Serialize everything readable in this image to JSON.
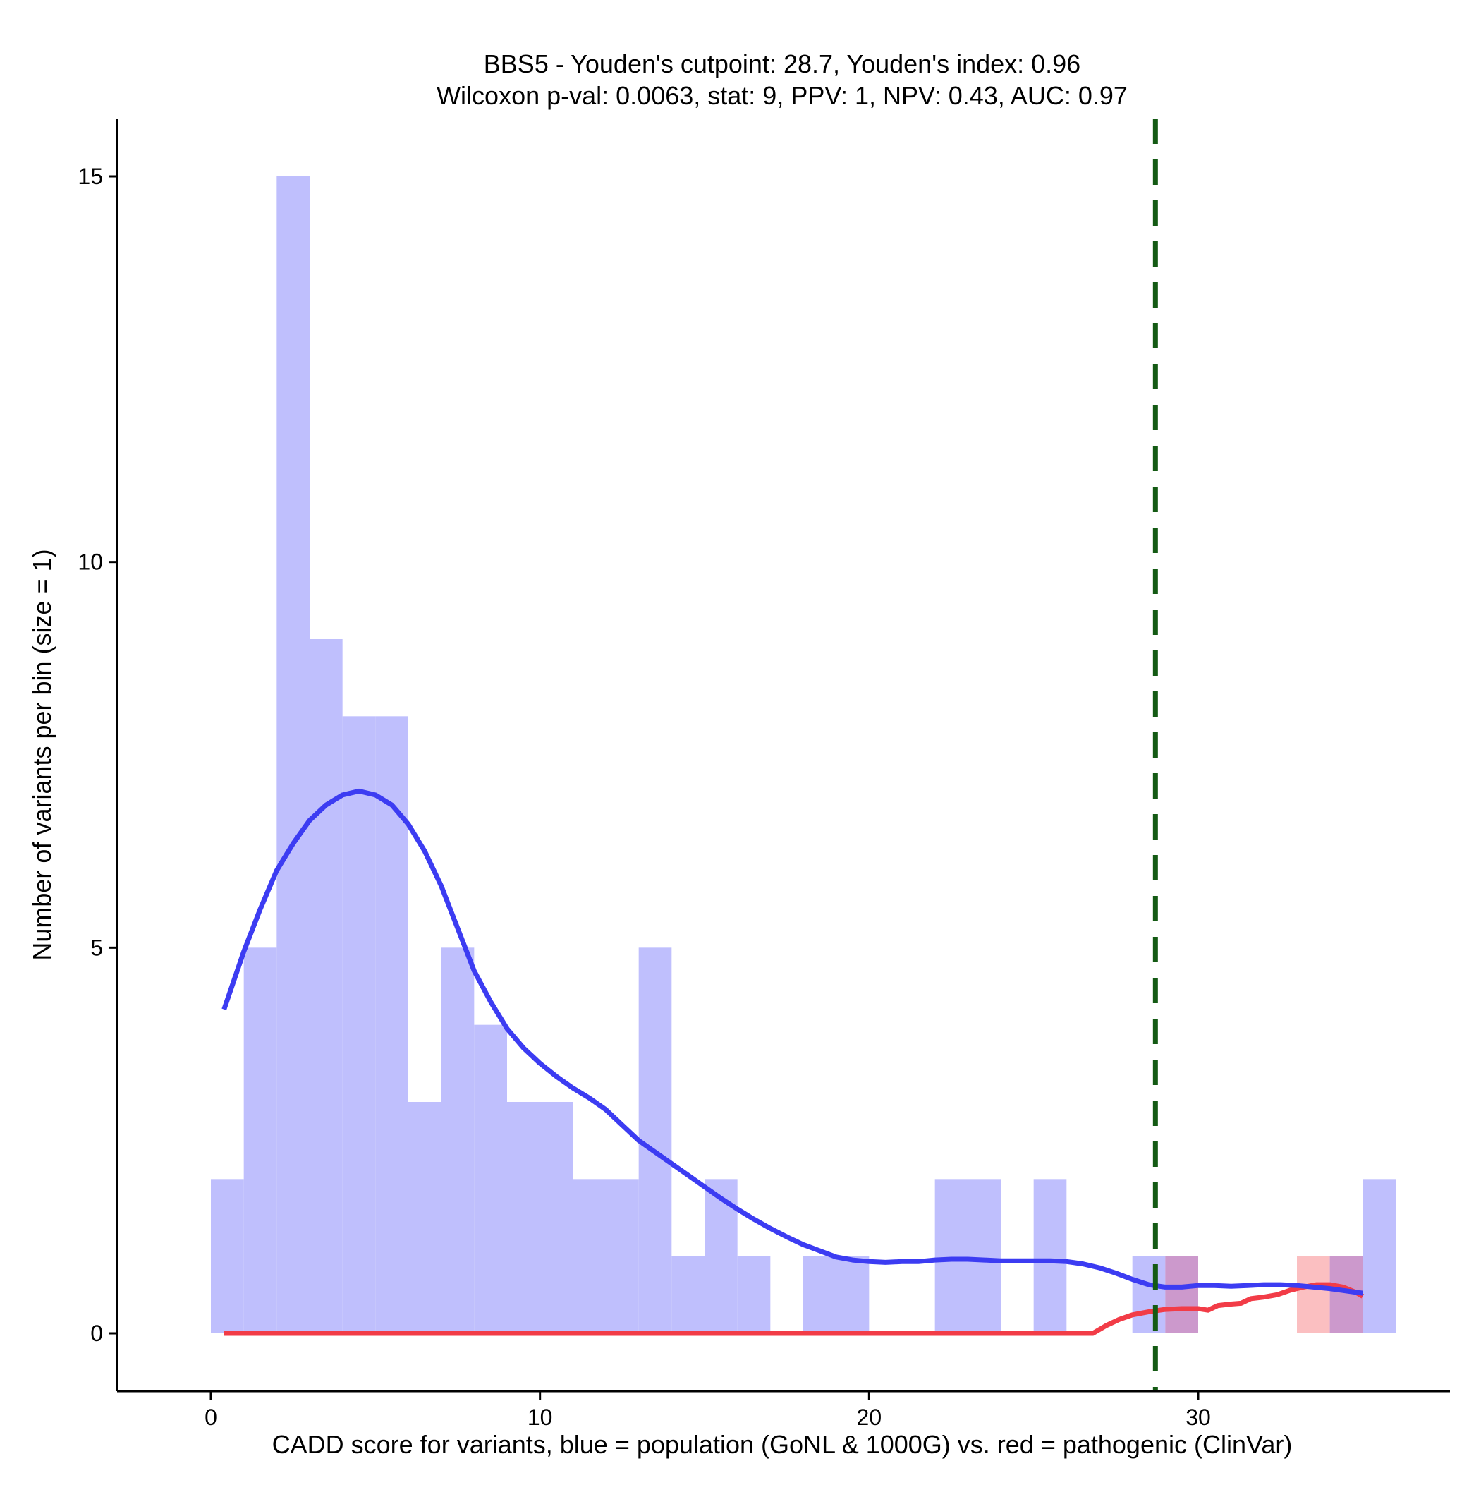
{
  "chart_data": {
    "type": "bar",
    "title_line1": "BBS5 - Youden's cutpoint: 28.7, Youden's index: 0.96",
    "title_line2": "Wilcoxon p-val: 0.0063, stat: 9, PPV: 1, NPV: 0.43, AUC: 0.97",
    "xlabel": "CADD score for variants, blue = population (GoNL & 1000G) vs. red = pathogenic (ClinVar)",
    "ylabel": "Number of variants per bin (size = 1)",
    "xlim": [
      -2.85,
      37.65
    ],
    "ylim": [
      -0.75,
      15.75
    ],
    "xticks": [
      0,
      10,
      20,
      30
    ],
    "yticks": [
      0,
      5,
      10,
      15
    ],
    "bin_width": 1,
    "grid": false,
    "colors": {
      "population_bar": "#bfbffd",
      "pathogenic_bar": "#fbbfc1",
      "overlap_bar": "#cc99cc",
      "population_line": "#3c3cf2",
      "pathogenic_line": "#f23c47",
      "cutpoint_line": "#145a14"
    },
    "series": [
      {
        "name": "population (GoNL & 1000G)",
        "bins": [
          {
            "x0": 0,
            "count": 2
          },
          {
            "x0": 1,
            "count": 5
          },
          {
            "x0": 2,
            "count": 15
          },
          {
            "x0": 3,
            "count": 9
          },
          {
            "x0": 4,
            "count": 8
          },
          {
            "x0": 5,
            "count": 8
          },
          {
            "x0": 6,
            "count": 3
          },
          {
            "x0": 7,
            "count": 5
          },
          {
            "x0": 8,
            "count": 4
          },
          {
            "x0": 9,
            "count": 3
          },
          {
            "x0": 10,
            "count": 3
          },
          {
            "x0": 11,
            "count": 2
          },
          {
            "x0": 12,
            "count": 2
          },
          {
            "x0": 13,
            "count": 5
          },
          {
            "x0": 14,
            "count": 1
          },
          {
            "x0": 15,
            "count": 2
          },
          {
            "x0": 16,
            "count": 1
          },
          {
            "x0": 18,
            "count": 1
          },
          {
            "x0": 19,
            "count": 1
          },
          {
            "x0": 22,
            "count": 2
          },
          {
            "x0": 23,
            "count": 2
          },
          {
            "x0": 25,
            "count": 2
          },
          {
            "x0": 28,
            "count": 1
          },
          {
            "x0": 29,
            "count": 1
          },
          {
            "x0": 34,
            "count": 1
          },
          {
            "x0": 35,
            "count": 2
          }
        ],
        "density_curve": [
          [
            0.4,
            4.2
          ],
          [
            1.0,
            4.95
          ],
          [
            1.5,
            5.5
          ],
          [
            2.0,
            6.0
          ],
          [
            2.5,
            6.35
          ],
          [
            3.0,
            6.65
          ],
          [
            3.5,
            6.85
          ],
          [
            4.0,
            6.98
          ],
          [
            4.5,
            7.03
          ],
          [
            5.0,
            6.98
          ],
          [
            5.5,
            6.85
          ],
          [
            6.0,
            6.6
          ],
          [
            6.5,
            6.25
          ],
          [
            7.0,
            5.8
          ],
          [
            7.5,
            5.25
          ],
          [
            8.0,
            4.7
          ],
          [
            8.5,
            4.3
          ],
          [
            9.0,
            3.95
          ],
          [
            9.5,
            3.7
          ],
          [
            10.0,
            3.5
          ],
          [
            10.5,
            3.33
          ],
          [
            11.0,
            3.18
          ],
          [
            11.5,
            3.05
          ],
          [
            12.0,
            2.9
          ],
          [
            12.5,
            2.7
          ],
          [
            13.0,
            2.5
          ],
          [
            13.5,
            2.35
          ],
          [
            14.0,
            2.2
          ],
          [
            14.5,
            2.05
          ],
          [
            15.0,
            1.9
          ],
          [
            15.5,
            1.75
          ],
          [
            16.0,
            1.61
          ],
          [
            16.5,
            1.48
          ],
          [
            17.0,
            1.36
          ],
          [
            17.5,
            1.25
          ],
          [
            18.0,
            1.15
          ],
          [
            18.5,
            1.07
          ],
          [
            19.0,
            0.99
          ],
          [
            19.5,
            0.95
          ],
          [
            20.0,
            0.93
          ],
          [
            20.5,
            0.92
          ],
          [
            21.0,
            0.93
          ],
          [
            21.5,
            0.93
          ],
          [
            22.0,
            0.95
          ],
          [
            22.5,
            0.96
          ],
          [
            23.0,
            0.96
          ],
          [
            23.5,
            0.95
          ],
          [
            24.0,
            0.94
          ],
          [
            24.5,
            0.94
          ],
          [
            25.0,
            0.94
          ],
          [
            25.5,
            0.94
          ],
          [
            26.0,
            0.93
          ],
          [
            26.5,
            0.9
          ],
          [
            27.0,
            0.85
          ],
          [
            27.5,
            0.78
          ],
          [
            28.0,
            0.7
          ],
          [
            28.5,
            0.63
          ],
          [
            29.0,
            0.6
          ],
          [
            29.5,
            0.6
          ],
          [
            30.0,
            0.62
          ],
          [
            30.5,
            0.62
          ],
          [
            31.0,
            0.61
          ],
          [
            31.5,
            0.62
          ],
          [
            32.0,
            0.63
          ],
          [
            32.5,
            0.63
          ],
          [
            33.0,
            0.62
          ],
          [
            33.5,
            0.6
          ],
          [
            34.0,
            0.58
          ],
          [
            34.5,
            0.55
          ],
          [
            35.0,
            0.52
          ]
        ]
      },
      {
        "name": "pathogenic (ClinVar)",
        "bins": [
          {
            "x0": 29,
            "count": 1
          },
          {
            "x0": 33,
            "count": 1
          },
          {
            "x0": 34,
            "count": 1
          }
        ],
        "density_curve": [
          [
            0.4,
            0.0
          ],
          [
            5.0,
            0.0
          ],
          [
            10.0,
            0.0
          ],
          [
            15.0,
            0.0
          ],
          [
            20.0,
            0.0
          ],
          [
            25.0,
            0.0
          ],
          [
            26.8,
            0.0
          ],
          [
            27.2,
            0.1
          ],
          [
            27.6,
            0.18
          ],
          [
            28.0,
            0.24
          ],
          [
            28.5,
            0.28
          ],
          [
            29.0,
            0.31
          ],
          [
            29.5,
            0.32
          ],
          [
            30.0,
            0.32
          ],
          [
            30.3,
            0.3
          ],
          [
            30.6,
            0.36
          ],
          [
            31.0,
            0.38
          ],
          [
            31.3,
            0.39
          ],
          [
            31.6,
            0.45
          ],
          [
            32.0,
            0.47
          ],
          [
            32.4,
            0.5
          ],
          [
            32.8,
            0.56
          ],
          [
            33.2,
            0.6
          ],
          [
            33.6,
            0.63
          ],
          [
            34.0,
            0.63
          ],
          [
            34.4,
            0.6
          ],
          [
            34.8,
            0.53
          ],
          [
            35.0,
            0.48
          ]
        ]
      }
    ],
    "cutpoint": 28.7
  }
}
